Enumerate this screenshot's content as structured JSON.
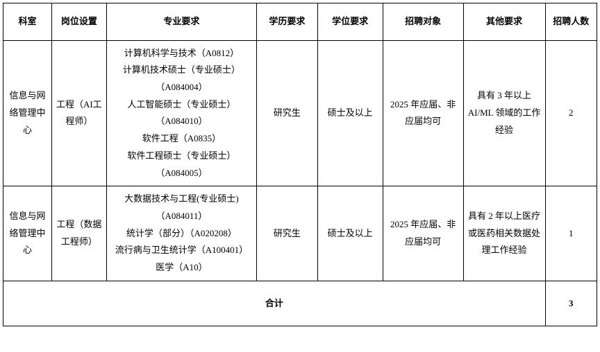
{
  "table": {
    "headers": {
      "dept": "科室",
      "position": "岗位设置",
      "major": "专业要求",
      "education": "学历要求",
      "degree": "学位要求",
      "target": "招聘对象",
      "other": "其他要求",
      "count": "招聘人数"
    },
    "rows": [
      {
        "dept": "信息与网络管理中心",
        "position": "工程（AI工程师）",
        "major": "计算机科学与技术（A0812）\n计算机技术硕士（专业硕士）（A084004）\n人工智能硕士（专业硕士）（A084010）\n软件工程（A0835）\n软件工程硕士（专业硕士）（A084005）",
        "education": "研究生",
        "degree": "硕士及以上",
        "target": "2025 年应届、非应届均可",
        "other": "具有 3 年以上AI/ML 领域的工作经验",
        "count": "2"
      },
      {
        "dept": "信息与网络管理中心",
        "position": "工程（数据工程师）",
        "major": "大数据技术与工程(专业硕士)（A084011）\n统计学（部分）（A020208）\n流行病与卫生统计学（A100401）\n医学（A10）",
        "education": "研究生",
        "degree": "硕士及以上",
        "target": "2025 年应届、非应届均可",
        "other": "具有 2 年以上医疗或医药相关数据处理工作经验",
        "count": "1"
      }
    ],
    "total": {
      "label": "合计",
      "value": "3"
    }
  },
  "style": {
    "background_color": "#ffffff",
    "border_color": "#000000",
    "text_color": "#000000",
    "font_family": "SimSun",
    "header_fontsize": 13,
    "cell_fontsize": 13,
    "line_height": 1.9
  }
}
